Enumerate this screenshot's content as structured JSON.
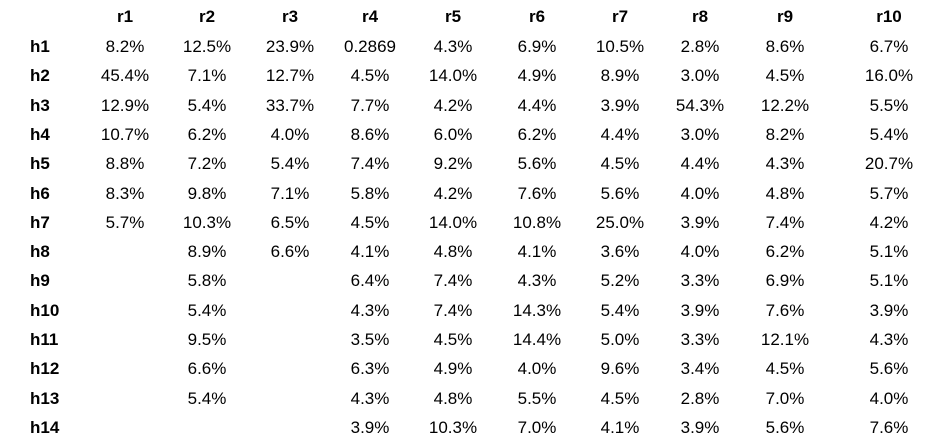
{
  "table": {
    "columns": [
      "r1",
      "r2",
      "r3",
      "r4",
      "r5",
      "r6",
      "r7",
      "r8",
      "r9",
      "r10"
    ],
    "rows": [
      {
        "label": "h1",
        "cells": [
          "8.2%",
          "12.5%",
          "23.9%",
          "0.2869",
          "4.3%",
          "6.9%",
          "10.5%",
          "2.8%",
          "8.6%",
          "6.7%"
        ]
      },
      {
        "label": "h2",
        "cells": [
          "45.4%",
          "7.1%",
          "12.7%",
          "4.5%",
          "14.0%",
          "4.9%",
          "8.9%",
          "3.0%",
          "4.5%",
          "16.0%"
        ]
      },
      {
        "label": "h3",
        "cells": [
          "12.9%",
          "5.4%",
          "33.7%",
          "7.7%",
          "4.2%",
          "4.4%",
          "3.9%",
          "54.3%",
          "12.2%",
          "5.5%"
        ]
      },
      {
        "label": "h4",
        "cells": [
          "10.7%",
          "6.2%",
          "4.0%",
          "8.6%",
          "6.0%",
          "6.2%",
          "4.4%",
          "3.0%",
          "8.2%",
          "5.4%"
        ]
      },
      {
        "label": "h5",
        "cells": [
          "8.8%",
          "7.2%",
          "5.4%",
          "7.4%",
          "9.2%",
          "5.6%",
          "4.5%",
          "4.4%",
          "4.3%",
          "20.7%"
        ]
      },
      {
        "label": "h6",
        "cells": [
          "8.3%",
          "9.8%",
          "7.1%",
          "5.8%",
          "4.2%",
          "7.6%",
          "5.6%",
          "4.0%",
          "4.8%",
          "5.7%"
        ]
      },
      {
        "label": "h7",
        "cells": [
          "5.7%",
          "10.3%",
          "6.5%",
          "4.5%",
          "14.0%",
          "10.8%",
          "25.0%",
          "3.9%",
          "7.4%",
          "4.2%"
        ]
      },
      {
        "label": "h8",
        "cells": [
          null,
          "8.9%",
          "6.6%",
          "4.1%",
          "4.8%",
          "4.1%",
          "3.6%",
          "4.0%",
          "6.2%",
          "5.1%"
        ]
      },
      {
        "label": "h9",
        "cells": [
          null,
          "5.8%",
          null,
          "6.4%",
          "7.4%",
          "4.3%",
          "5.2%",
          "3.3%",
          "6.9%",
          "5.1%"
        ]
      },
      {
        "label": "h10",
        "cells": [
          null,
          "5.4%",
          null,
          "4.3%",
          "7.4%",
          "14.3%",
          "5.4%",
          "3.9%",
          "7.6%",
          "3.9%"
        ]
      },
      {
        "label": "h11",
        "cells": [
          null,
          "9.5%",
          null,
          "3.5%",
          "4.5%",
          "14.4%",
          "5.0%",
          "3.3%",
          "12.1%",
          "4.3%"
        ]
      },
      {
        "label": "h12",
        "cells": [
          null,
          "6.6%",
          null,
          "6.3%",
          "4.9%",
          "4.0%",
          "9.6%",
          "3.4%",
          "4.5%",
          "5.6%"
        ]
      },
      {
        "label": "h13",
        "cells": [
          null,
          "5.4%",
          null,
          "4.3%",
          "4.8%",
          "5.5%",
          "4.5%",
          "2.8%",
          "7.0%",
          "4.0%"
        ]
      },
      {
        "label": "h14",
        "cells": [
          null,
          null,
          null,
          "3.9%",
          "10.3%",
          "7.0%",
          "4.1%",
          "3.9%",
          "5.6%",
          "7.6%"
        ]
      }
    ]
  }
}
